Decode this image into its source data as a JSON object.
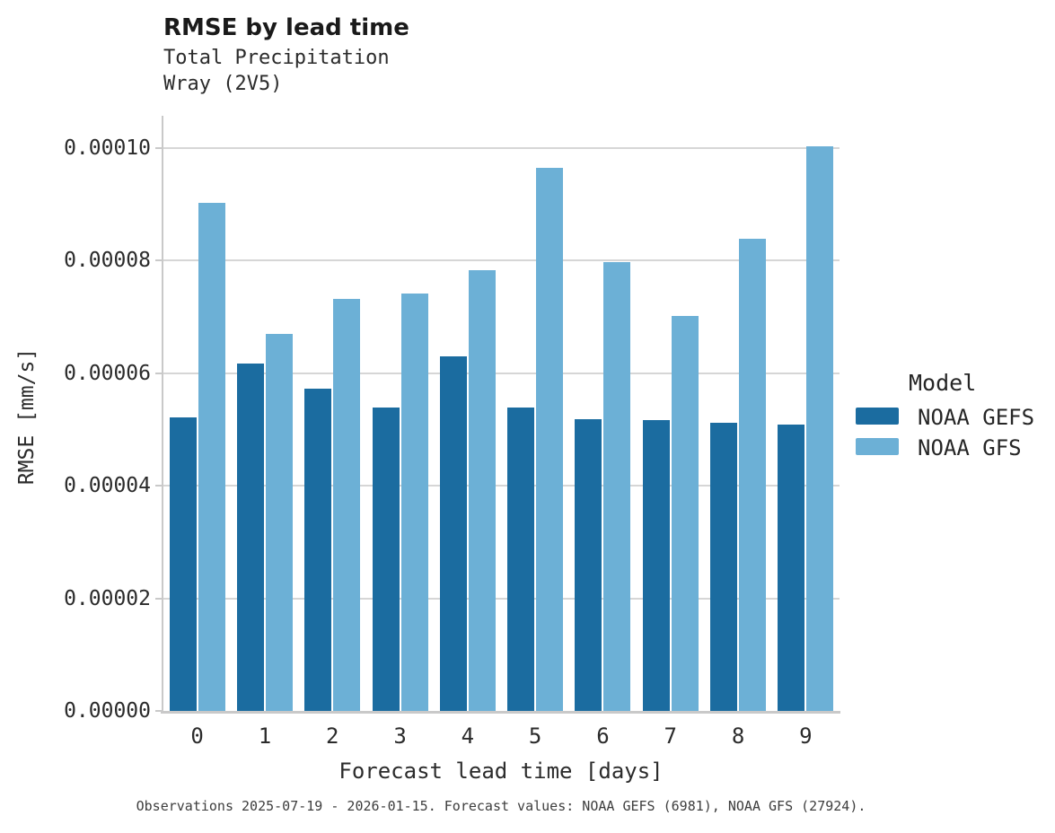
{
  "header": {
    "title": "RMSE by lead time",
    "subtitle1": "Total Precipitation",
    "subtitle2": "Wray (2V5)"
  },
  "footer": {
    "text": "Observations 2025-07-19 - 2026-01-15. Forecast values: NOAA GEFS (6981), NOAA GFS (27924)."
  },
  "colors": {
    "gefs_dark_blue": "#1b6ca0",
    "gfs_light_blue": "#6cb0d6",
    "gridline_gray": "#d6d6d6",
    "spine_gray": "#c9c9c9",
    "text": "#262626"
  },
  "chart_data": {
    "type": "bar",
    "title": "RMSE by lead time",
    "subtitle": [
      "Total Precipitation",
      "Wray (2V5)"
    ],
    "categories": [
      "0",
      "1",
      "2",
      "3",
      "4",
      "5",
      "6",
      "7",
      "8",
      "9"
    ],
    "series": [
      {
        "name": "NOAA GEFS",
        "color": "#1b6ca0",
        "values": [
          5.22e-05,
          6.17e-05,
          5.73e-05,
          5.39e-05,
          6.3e-05,
          5.39e-05,
          5.18e-05,
          5.17e-05,
          5.12e-05,
          5.09e-05
        ]
      },
      {
        "name": "NOAA GFS",
        "color": "#6cb0d6",
        "values": [
          9.03e-05,
          6.7e-05,
          7.32e-05,
          7.41e-05,
          7.83e-05,
          9.65e-05,
          7.97e-05,
          7.02e-05,
          8.39e-05,
          0.0001003
        ]
      }
    ],
    "xlabel": "Forecast lead time [days]",
    "ylabel": "RMSE [mm/s]",
    "ylim": [
      0,
      0.00010574
    ],
    "y_ticks": [
      {
        "value": 0.0,
        "label": "0.00000"
      },
      {
        "value": 2e-05,
        "label": "0.00002"
      },
      {
        "value": 4e-05,
        "label": "0.00004"
      },
      {
        "value": 6e-05,
        "label": "0.00006"
      },
      {
        "value": 8e-05,
        "label": "0.00008"
      },
      {
        "value": 0.0001,
        "label": "0.00010"
      }
    ],
    "grid": "horizontal",
    "legend": {
      "title": "Model",
      "position": "right",
      "entries": [
        "NOAA GEFS",
        "NOAA GFS"
      ]
    }
  }
}
